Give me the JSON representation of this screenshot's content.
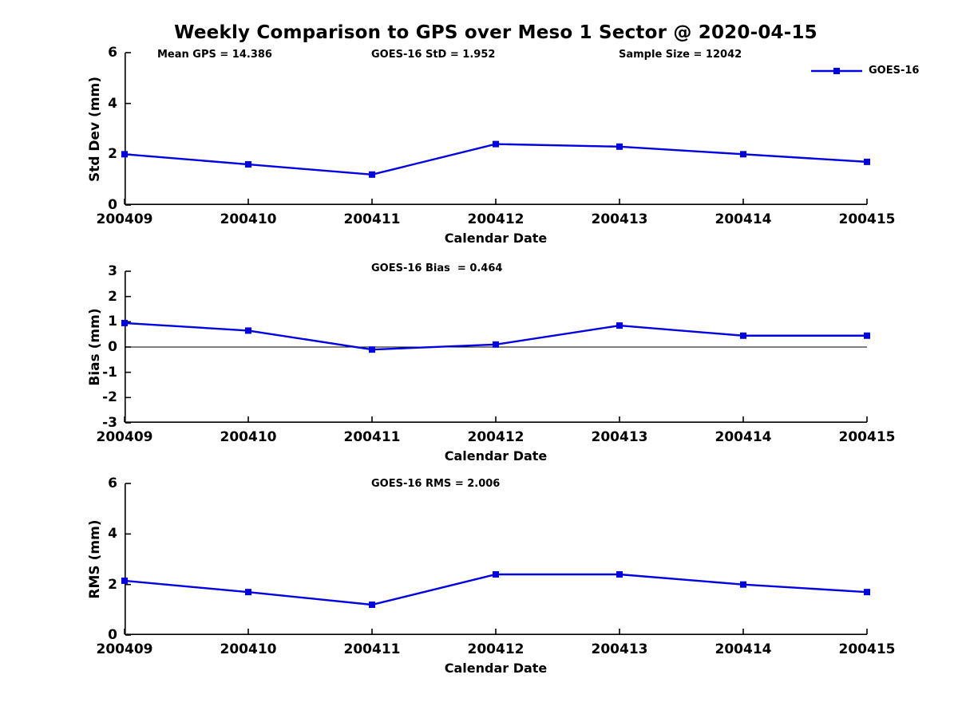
{
  "title": "Weekly Comparison to GPS over Meso 1 Sector @ 2020-04-15",
  "colors": {
    "line": "#0000E1",
    "axis": "#000000",
    "text": "#000000",
    "background": "#FFFFFF"
  },
  "legend": {
    "label": "GOES-16"
  },
  "chart_data": [
    {
      "type": "line",
      "name": "std-dev",
      "ylabel": "Std Dev (mm)",
      "xlabel": "Calendar Date",
      "categories": [
        "200409",
        "200410",
        "200411",
        "200412",
        "200413",
        "200414",
        "200415"
      ],
      "series": [
        {
          "name": "GOES-16",
          "values": [
            2.0,
            1.6,
            1.2,
            2.4,
            2.3,
            2.0,
            1.7
          ]
        }
      ],
      "ylim": [
        0,
        6
      ],
      "yticks": [
        0,
        2,
        4,
        6
      ],
      "annotations": [
        "Mean GPS = 14.386",
        "GOES-16 StD = 1.952",
        "Sample Size = 12042"
      ],
      "grid": false,
      "legend_position": "top-right",
      "marker": "square"
    },
    {
      "type": "line",
      "name": "bias",
      "ylabel": "Bias (mm)",
      "xlabel": "Calendar Date",
      "categories": [
        "200409",
        "200410",
        "200411",
        "200412",
        "200413",
        "200414",
        "200415"
      ],
      "series": [
        {
          "name": "GOES-16",
          "values": [
            0.95,
            0.65,
            -0.1,
            0.1,
            0.85,
            0.45,
            0.45
          ]
        }
      ],
      "ylim": [
        -3,
        3
      ],
      "yticks": [
        3,
        2,
        1,
        0,
        -1,
        -2,
        -3
      ],
      "annotations": [
        "GOES-16 Bias  = 0.464"
      ],
      "zero_line": true,
      "grid": false,
      "marker": "square"
    },
    {
      "type": "line",
      "name": "rms",
      "ylabel": "RMS (mm)",
      "xlabel": "Calendar Date",
      "categories": [
        "200409",
        "200410",
        "200411",
        "200412",
        "200413",
        "200414",
        "200415"
      ],
      "series": [
        {
          "name": "GOES-16",
          "values": [
            2.15,
            1.7,
            1.2,
            2.4,
            2.4,
            2.0,
            1.7
          ]
        }
      ],
      "ylim": [
        0,
        6
      ],
      "yticks": [
        0,
        2,
        4,
        6
      ],
      "annotations": [
        "GOES-16 RMS = 2.006"
      ],
      "grid": false,
      "marker": "square"
    }
  ]
}
